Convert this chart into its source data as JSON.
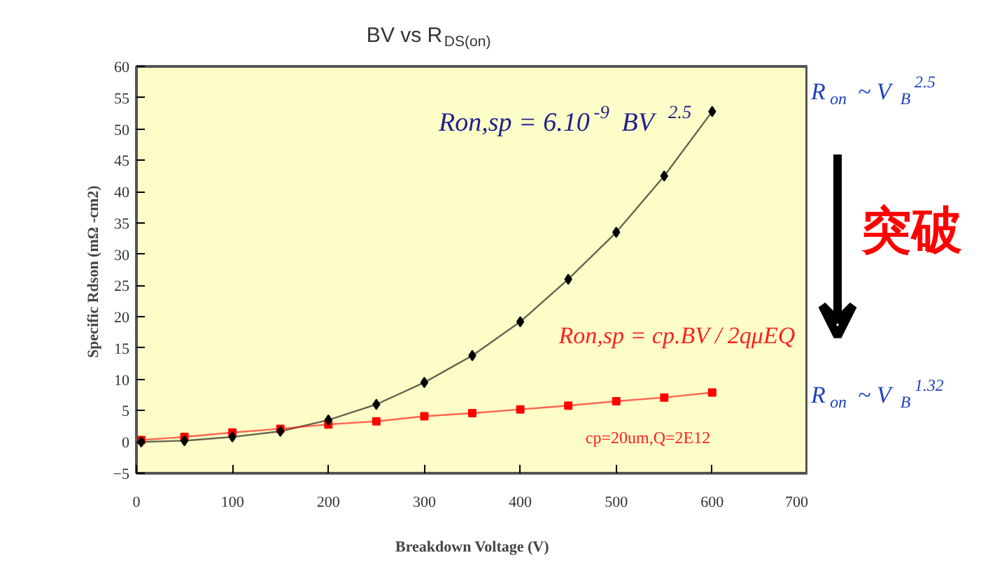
{
  "chart_data": {
    "type": "line",
    "title": "BV vs R$_{DS(on)}$",
    "xlabel": "Breakdown Voltage (V)",
    "ylabel": "Specific Rdson (mΩ  -cm2)",
    "x": [
      5,
      50,
      100,
      150,
      200,
      250,
      300,
      350,
      400,
      450,
      500,
      550,
      600
    ],
    "series": [
      {
        "color": "#000000",
        "marker": "diamond",
        "values": [
          0,
          0.2,
          0.8,
          1.7,
          3.5,
          6,
          9.5,
          13.8,
          19.2,
          26,
          33.5,
          42.5,
          52.8
        ]
      },
      {
        "color": "#ff0000",
        "marker": "square",
        "values": [
          0.3,
          0.8,
          1.5,
          2.1,
          2.8,
          3.3,
          4.1,
          4.6,
          5.2,
          5.8,
          6.5,
          7.1,
          7.9
        ]
      }
    ],
    "xlim": [
      0,
      700
    ],
    "xticks": [
      0,
      100,
      200,
      300,
      400,
      500,
      600,
      700
    ],
    "ylim": [
      -5,
      60
    ],
    "yticks": [
      -5,
      0,
      5,
      10,
      15,
      20,
      25,
      30,
      35,
      40,
      45,
      50,
      55,
      60
    ],
    "grid": false,
    "annotations": [
      "Ron,sp = 6.10$^{-9}$ BV$^{2.5}$",
      "Ron,sp = cp.BV / 2qμEQ",
      "cp=20um,Q=2E12",
      "R$_{on}$ ~ V$_{B}$$^{2.5}$",
      "突破",
      "R$_{on}$ ~ V$_{B}$$^{1.32}$"
    ]
  }
}
